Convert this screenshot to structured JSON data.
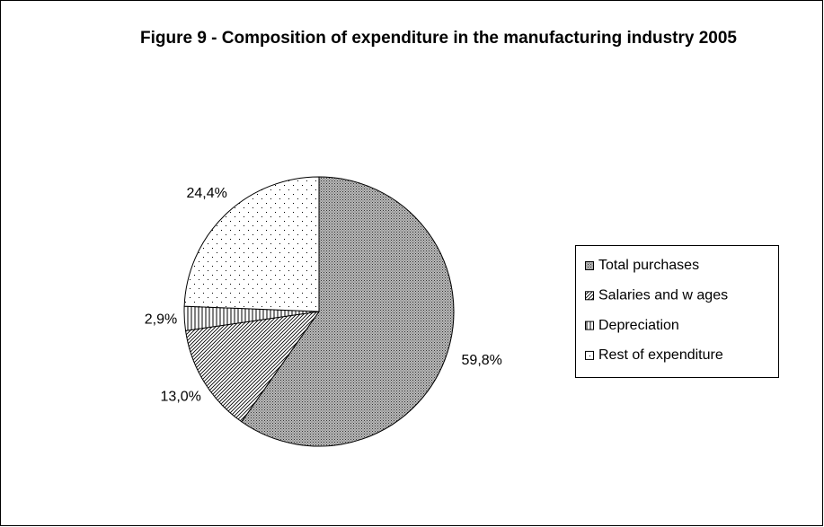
{
  "chart_data": {
    "type": "pie",
    "title": "Figure 9 - Composition of expenditure in the manufacturing industry 2005",
    "categories": [
      "Total purchases",
      "Salaries and w ages",
      "Depreciation",
      "Rest of expenditure"
    ],
    "values": [
      59.8,
      13.0,
      2.9,
      24.4
    ],
    "value_labels": [
      "59,8%",
      "13,0%",
      "2,9%",
      "24,4%"
    ],
    "legend": "right"
  }
}
